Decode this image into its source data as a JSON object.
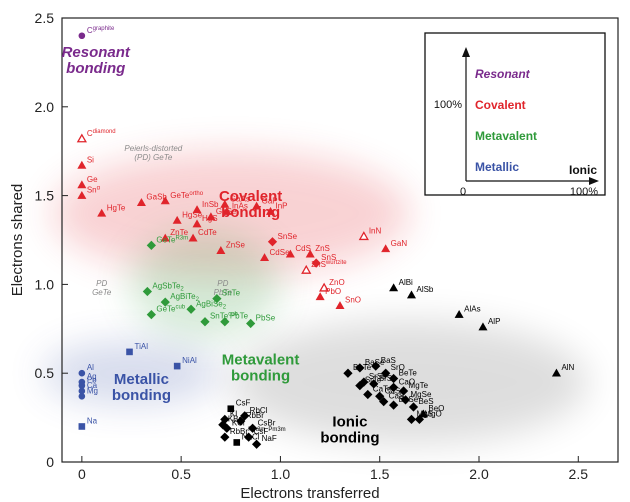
{
  "colors": {
    "covalent": "#e0242b",
    "metavalent": "#2f9a3a",
    "metallic": "#3a53a6",
    "ionic": "#000000",
    "resonant": "#7a2a8c",
    "note": "#8a8a8a"
  },
  "chart_data": {
    "type": "scatter",
    "xlabel": "Electrons transferred",
    "ylabel": "Electrons shared",
    "xlim": [
      -0.1,
      2.7
    ],
    "ylim": [
      0,
      2.5
    ],
    "x_ticks": [
      0,
      0.5,
      1.0,
      1.5,
      2.0,
      2.5
    ],
    "x_tick_labels": [
      "0",
      "0.5",
      "1.0",
      "1.5",
      "2.0",
      "2.5"
    ],
    "y_ticks": [
      0,
      0.5,
      1.0,
      1.5,
      2.0,
      2.5
    ],
    "y_tick_labels": [
      "0",
      "0.5",
      "1.0",
      "1.5",
      "2.0",
      "2.5"
    ],
    "grid": false,
    "regions": [
      {
        "label": "Covalent bonding",
        "color": "covalent",
        "at": [
          0.85,
          1.47
        ],
        "cx": 0.75,
        "cy": 1.4,
        "rx": 0.9,
        "ry": 0.35
      },
      {
        "label": "Metavalent bonding",
        "color": "metavalent",
        "at": [
          0.9,
          0.55
        ],
        "cx": 0.62,
        "cy": 1.0,
        "rx": 0.38,
        "ry": 0.3
      },
      {
        "label": "Metallic bonding",
        "color": "metallic",
        "at": [
          0.3,
          0.44
        ],
        "cx": 0.25,
        "cy": 0.5,
        "rx": 0.45,
        "ry": 0.18
      },
      {
        "label": "Ionic bonding",
        "color": "ionic",
        "at": [
          1.35,
          0.2
        ],
        "cx": 1.65,
        "cy": 0.45,
        "rx": 0.9,
        "ry": 0.35
      }
    ],
    "resonant_label": {
      "lines": [
        "Resonant",
        "bonding"
      ],
      "at": [
        0.07,
        2.28
      ]
    },
    "notes": [
      {
        "lines": [
          "Peierls-distorted",
          "(PD) GeTe"
        ],
        "at": [
          0.36,
          1.75
        ]
      },
      {
        "lines": [
          "PD",
          "GeTe"
        ],
        "at": [
          0.1,
          0.99
        ]
      },
      {
        "lines": [
          "PD",
          "PbTe"
        ],
        "at": [
          0.71,
          0.99
        ]
      }
    ],
    "series": [
      {
        "name": "Resonant",
        "color": "resonant",
        "marker": "circle",
        "points": [
          {
            "label": "C",
            "sup": "graphite",
            "x": 0.0,
            "y": 2.4
          }
        ]
      },
      {
        "name": "Covalent",
        "color": "covalent",
        "marker": "triangle",
        "points": [
          {
            "label": "C",
            "sup": "diamond",
            "x": 0.0,
            "y": 1.82,
            "open": true
          },
          {
            "label": "Si",
            "x": 0.0,
            "y": 1.67
          },
          {
            "label": "Ge",
            "x": 0.0,
            "y": 1.56
          },
          {
            "label": "Sn",
            "sup": "α",
            "x": 0.0,
            "y": 1.5
          },
          {
            "label": "HgTe",
            "x": 0.1,
            "y": 1.4
          },
          {
            "label": "GaSb",
            "x": 0.3,
            "y": 1.46
          },
          {
            "label": "GeTe",
            "sup": "ortho",
            "x": 0.42,
            "y": 1.47
          },
          {
            "label": "HgSe",
            "x": 0.48,
            "y": 1.36
          },
          {
            "label": "InSb",
            "x": 0.58,
            "y": 1.42
          },
          {
            "label": "GaAs",
            "x": 0.72,
            "y": 1.45
          },
          {
            "label": "InAs",
            "x": 0.73,
            "y": 1.41
          },
          {
            "label": "GeSe",
            "x": 0.65,
            "y": 1.38
          },
          {
            "label": "HgS",
            "x": 0.58,
            "y": 1.34
          },
          {
            "label": "GaP",
            "x": 0.88,
            "y": 1.44
          },
          {
            "label": "InP",
            "x": 0.95,
            "y": 1.41
          },
          {
            "label": "ZnTe",
            "x": 0.42,
            "y": 1.26
          },
          {
            "label": "CdTe",
            "x": 0.56,
            "y": 1.26
          },
          {
            "label": "ZnSe",
            "x": 0.7,
            "y": 1.19
          },
          {
            "label": "CdSe",
            "x": 0.92,
            "y": 1.15
          },
          {
            "label": "CdS",
            "x": 1.05,
            "y": 1.17
          },
          {
            "label": "ZnS",
            "x": 1.15,
            "y": 1.17
          },
          {
            "label": "SnSe",
            "x": 0.96,
            "y": 1.24,
            "shape": "diamond"
          },
          {
            "label": "SnS",
            "x": 1.18,
            "y": 1.12,
            "shape": "diamond"
          },
          {
            "label": "ZnS",
            "sup": "wurtzite",
            "x": 1.13,
            "y": 1.08,
            "open": true
          },
          {
            "label": "InN",
            "x": 1.42,
            "y": 1.27,
            "open": true
          },
          {
            "label": "GaN",
            "x": 1.53,
            "y": 1.2
          },
          {
            "label": "ZnO",
            "x": 1.22,
            "y": 0.98,
            "open": true
          },
          {
            "label": "PbO",
            "x": 1.2,
            "y": 0.93
          },
          {
            "label": "SnO",
            "x": 1.3,
            "y": 0.88
          }
        ]
      },
      {
        "name": "Metavalent",
        "color": "metavalent",
        "marker": "diamond",
        "points": [
          {
            "label": "GeTe",
            "sup": "R3m",
            "x": 0.35,
            "y": 1.22
          },
          {
            "label": "AgSbTe",
            "sub": "2",
            "x": 0.33,
            "y": 0.96
          },
          {
            "label": "AgBiTe",
            "sub": "2",
            "x": 0.42,
            "y": 0.9
          },
          {
            "label": "GeTe",
            "sup": "cub",
            "x": 0.35,
            "y": 0.83
          },
          {
            "label": "AgBiSe",
            "sub": "2",
            "x": 0.55,
            "y": 0.86
          },
          {
            "label": "SnTe",
            "x": 0.68,
            "y": 0.92
          },
          {
            "label": "SnTe",
            "sup": "cub",
            "x": 0.62,
            "y": 0.79
          },
          {
            "label": "PbTe",
            "x": 0.72,
            "y": 0.79
          },
          {
            "label": "PbSe",
            "x": 0.85,
            "y": 0.78
          }
        ]
      },
      {
        "name": "Metallic",
        "color": "metallic",
        "marker": "circle",
        "points": [
          {
            "label": "Al",
            "x": 0.0,
            "y": 0.5
          },
          {
            "label": "Ag",
            "x": 0.0,
            "y": 0.45
          },
          {
            "label": "Pb",
            "x": 0.0,
            "y": 0.43
          },
          {
            "label": "Ca",
            "x": 0.0,
            "y": 0.4
          },
          {
            "label": "Mg",
            "x": 0.0,
            "y": 0.37
          },
          {
            "label": "Na",
            "x": 0.0,
            "y": 0.2,
            "shape": "square"
          },
          {
            "label": "TiAl",
            "x": 0.24,
            "y": 0.62,
            "shape": "square"
          },
          {
            "label": "NiAl",
            "x": 0.48,
            "y": 0.54,
            "shape": "square"
          }
        ]
      },
      {
        "name": "Ionic",
        "color": "ionic",
        "marker": "diamond",
        "points": [
          {
            "label": "AlBi",
            "x": 1.57,
            "y": 0.98,
            "shape": "triangle"
          },
          {
            "label": "AlSb",
            "x": 1.66,
            "y": 0.94,
            "shape": "triangle"
          },
          {
            "label": "AlAs",
            "x": 1.9,
            "y": 0.83,
            "shape": "triangle"
          },
          {
            "label": "AlP",
            "x": 2.02,
            "y": 0.76,
            "shape": "triangle"
          },
          {
            "label": "AlN",
            "x": 2.39,
            "y": 0.5,
            "shape": "triangle"
          },
          {
            "label": "BaSe",
            "x": 1.4,
            "y": 0.53
          },
          {
            "label": "BaS",
            "x": 1.48,
            "y": 0.54
          },
          {
            "label": "BaTe",
            "x": 1.34,
            "y": 0.5
          },
          {
            "label": "SrO",
            "x": 1.53,
            "y": 0.5
          },
          {
            "label": "BeTe",
            "x": 1.57,
            "y": 0.47
          },
          {
            "label": "SrSe",
            "x": 1.42,
            "y": 0.45
          },
          {
            "label": "SrS",
            "x": 1.47,
            "y": 0.44
          },
          {
            "label": "SrTe",
            "x": 1.4,
            "y": 0.43
          },
          {
            "label": "CaO",
            "x": 1.57,
            "y": 0.42
          },
          {
            "label": "MgTe",
            "x": 1.62,
            "y": 0.4
          },
          {
            "label": "CaTe",
            "x": 1.44,
            "y": 0.38
          },
          {
            "label": "CaSe",
            "x": 1.5,
            "y": 0.37
          },
          {
            "label": "MgSe",
            "x": 1.63,
            "y": 0.35
          },
          {
            "label": "BeSe",
            "x": 1.57,
            "y": 0.32
          },
          {
            "label": "BeS",
            "x": 1.67,
            "y": 0.31
          },
          {
            "label": "CaS",
            "x": 1.52,
            "y": 0.34
          },
          {
            "label": "BeO",
            "x": 1.72,
            "y": 0.27,
            "shape": "triangle"
          },
          {
            "label": "MgO",
            "x": 1.7,
            "y": 0.24
          },
          {
            "label": "MgS",
            "x": 1.66,
            "y": 0.24
          },
          {
            "label": "CsF",
            "x": 0.75,
            "y": 0.3,
            "shape": "square"
          },
          {
            "label": "RbCl",
            "x": 0.82,
            "y": 0.26
          },
          {
            "label": "KI",
            "x": 0.72,
            "y": 0.24
          },
          {
            "label": "RbBr",
            "x": 0.8,
            "y": 0.23
          },
          {
            "label": "KBr",
            "x": 0.71,
            "y": 0.21
          },
          {
            "label": "KCl",
            "x": 0.73,
            "y": 0.19
          },
          {
            "label": "CsBr",
            "x": 0.86,
            "y": 0.19
          },
          {
            "label": "RbBr",
            "sup": "Pm3m",
            "x": 0.72,
            "y": 0.14
          },
          {
            "label": "CsF",
            "sup": "Pm3m",
            "x": 0.84,
            "y": 0.14
          },
          {
            "label": "NaCl",
            "x": 0.78,
            "y": 0.11,
            "shape": "square"
          },
          {
            "label": "NaF",
            "x": 0.88,
            "y": 0.1
          }
        ]
      }
    ]
  },
  "inset": {
    "y_label": "100%",
    "x_origin": "0",
    "x_label": "100%",
    "axis_end_label": "Ionic",
    "items": [
      {
        "label": "Resonant",
        "color": "resonant",
        "italic": true
      },
      {
        "label": "Covalent",
        "color": "covalent",
        "italic": false
      },
      {
        "label": "Metavalent",
        "color": "metavalent",
        "italic": false
      },
      {
        "label": "Metallic",
        "color": "metallic",
        "italic": false
      }
    ]
  }
}
